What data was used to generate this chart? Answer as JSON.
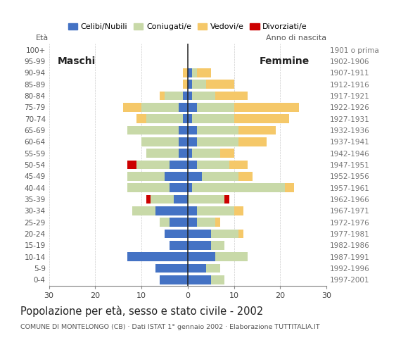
{
  "age_groups": [
    "0-4",
    "5-9",
    "10-14",
    "15-19",
    "20-24",
    "25-29",
    "30-34",
    "35-39",
    "40-44",
    "45-49",
    "50-54",
    "55-59",
    "60-64",
    "65-69",
    "70-74",
    "75-79",
    "80-84",
    "85-89",
    "90-94",
    "95-99",
    "100+"
  ],
  "birth_years": [
    "1997-2001",
    "1992-1996",
    "1987-1991",
    "1982-1986",
    "1977-1981",
    "1972-1976",
    "1967-1971",
    "1962-1966",
    "1957-1961",
    "1952-1956",
    "1947-1951",
    "1942-1946",
    "1937-1941",
    "1932-1936",
    "1927-1931",
    "1922-1926",
    "1917-1921",
    "1912-1916",
    "1907-1911",
    "1902-1906",
    "1901 o prima"
  ],
  "male_cel": [
    6,
    7,
    13,
    4,
    5,
    4,
    7,
    3,
    4,
    5,
    4,
    2,
    2,
    2,
    1,
    2,
    1,
    0,
    0,
    0,
    0
  ],
  "male_con": [
    0,
    0,
    0,
    0,
    0,
    2,
    5,
    5,
    9,
    8,
    7,
    7,
    8,
    11,
    8,
    8,
    4,
    0,
    0,
    0,
    0
  ],
  "male_ved": [
    0,
    0,
    0,
    0,
    0,
    0,
    0,
    0,
    0,
    0,
    0,
    0,
    0,
    0,
    2,
    4,
    1,
    1,
    1,
    0,
    0
  ],
  "male_div": [
    0,
    0,
    0,
    0,
    0,
    0,
    0,
    1,
    0,
    0,
    2,
    0,
    0,
    0,
    0,
    0,
    0,
    0,
    0,
    0,
    0
  ],
  "fem_nub": [
    5,
    4,
    6,
    5,
    5,
    2,
    2,
    0,
    1,
    3,
    2,
    1,
    2,
    2,
    1,
    2,
    1,
    1,
    1,
    0,
    0
  ],
  "fem_con": [
    3,
    3,
    7,
    3,
    6,
    4,
    8,
    8,
    20,
    8,
    7,
    6,
    9,
    9,
    9,
    8,
    5,
    3,
    1,
    0,
    0
  ],
  "fem_ved": [
    0,
    0,
    0,
    0,
    1,
    1,
    2,
    0,
    2,
    3,
    4,
    3,
    6,
    8,
    12,
    14,
    7,
    6,
    3,
    0,
    0
  ],
  "fem_div": [
    0,
    0,
    0,
    0,
    0,
    0,
    0,
    1,
    0,
    0,
    0,
    0,
    0,
    0,
    0,
    0,
    0,
    0,
    0,
    0,
    0
  ],
  "c_cel": "#4472C4",
  "c_con": "#c8d9a8",
  "c_ved": "#f5c869",
  "c_div": "#cc0000",
  "xlim": 30,
  "title": "Popolazione per età, sesso e stato civile - 2002",
  "subtitle": "COMUNE DI MONTELONGO (CB) · Dati ISTAT 1° gennaio 2002 · Elaborazione TUTTITALIA.IT",
  "eta_label": "Età",
  "anno_label": "Anno di nascita",
  "maschi_label": "Maschi",
  "femmine_label": "Femmine",
  "legend_labels": [
    "Celibi/Nubili",
    "Coniugati/e",
    "Vedovi/e",
    "Divorziati/e"
  ]
}
